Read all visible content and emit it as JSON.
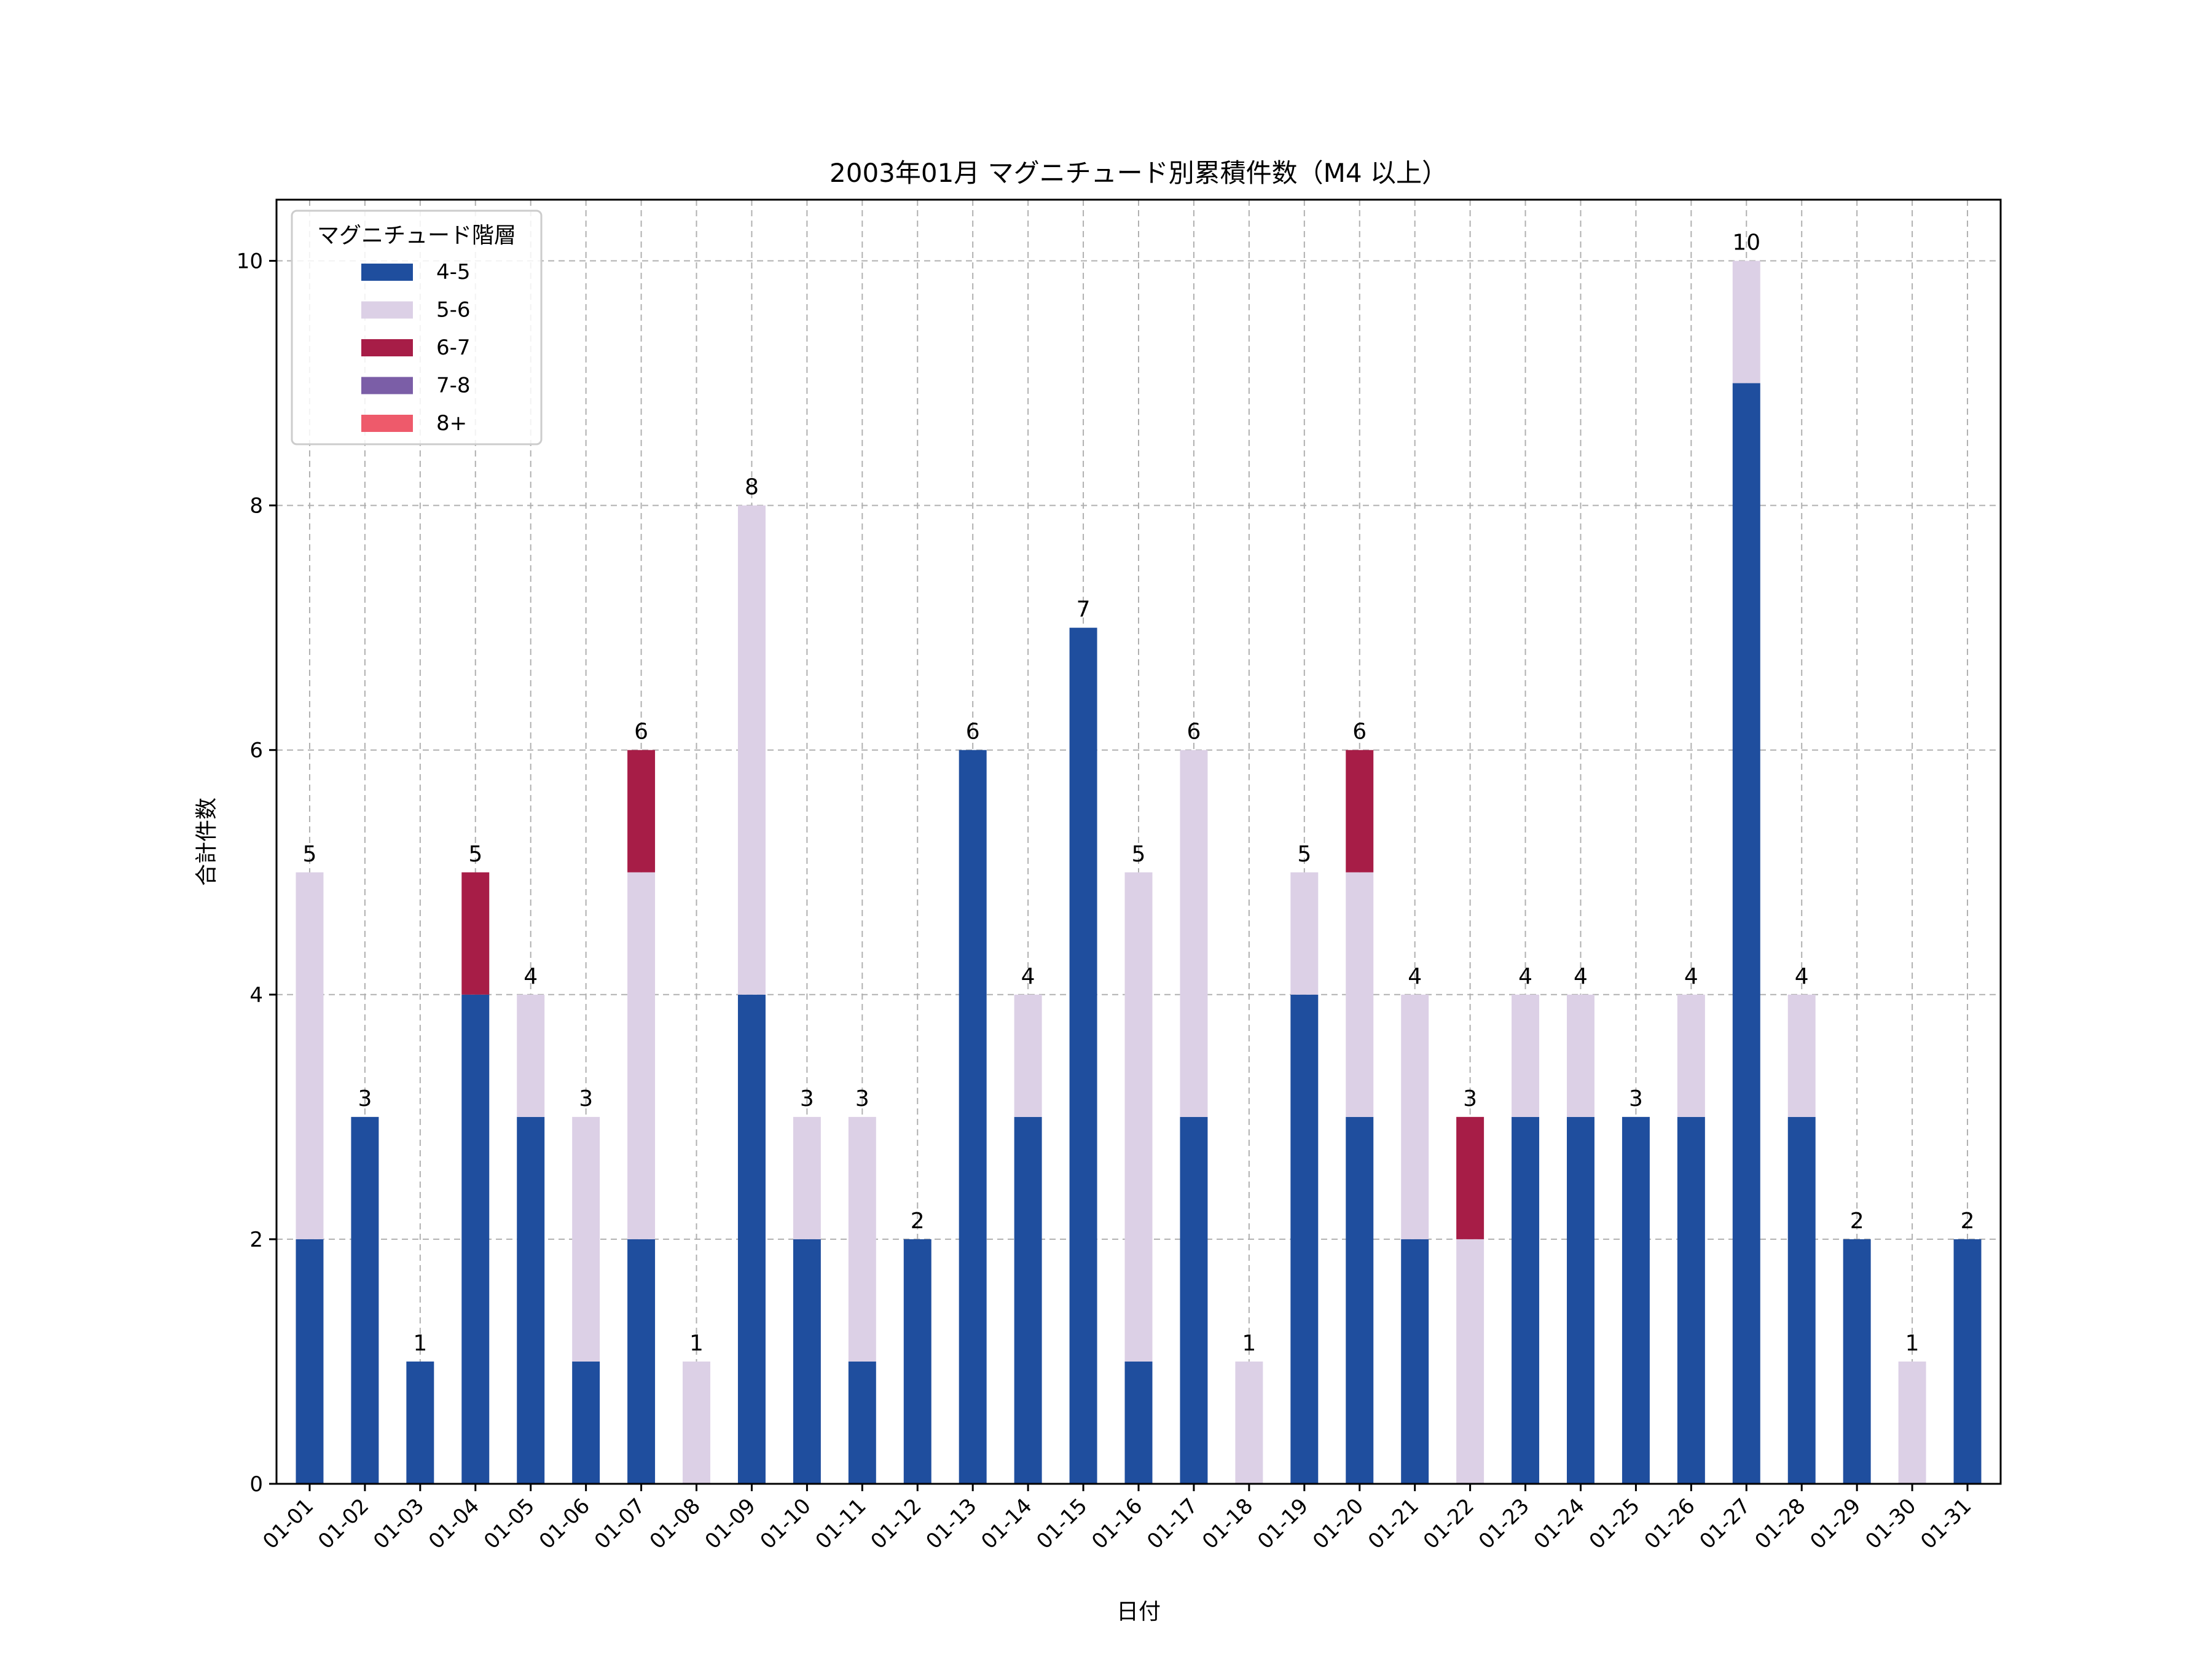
{
  "chart_data": {
    "type": "bar",
    "stacked": true,
    "title": "2003年01月 マグニチュード別累積件数（M4 以上）",
    "xlabel": "日付",
    "ylabel": "合計件数",
    "ylim": [
      0,
      10.5
    ],
    "yticks": [
      0,
      2,
      4,
      6,
      8,
      10
    ],
    "grid": true,
    "legend": {
      "title": "マグニチュード階層",
      "placement": "top-left"
    },
    "categories": [
      "01-01",
      "01-02",
      "01-03",
      "01-04",
      "01-05",
      "01-06",
      "01-07",
      "01-08",
      "01-09",
      "01-10",
      "01-11",
      "01-12",
      "01-13",
      "01-14",
      "01-15",
      "01-16",
      "01-17",
      "01-18",
      "01-19",
      "01-20",
      "01-21",
      "01-22",
      "01-23",
      "01-24",
      "01-25",
      "01-26",
      "01-27",
      "01-28",
      "01-29",
      "01-30",
      "01-31"
    ],
    "series": [
      {
        "name": "4-5",
        "color": "#1f4e9e",
        "values": [
          2,
          3,
          1,
          4,
          3,
          1,
          2,
          0,
          4,
          2,
          1,
          2,
          6,
          3,
          7,
          1,
          3,
          0,
          4,
          3,
          2,
          0,
          3,
          3,
          3,
          3,
          9,
          3,
          2,
          0,
          2
        ]
      },
      {
        "name": "5-6",
        "color": "#dcd0e6",
        "values": [
          3,
          0,
          0,
          0,
          1,
          2,
          3,
          1,
          4,
          1,
          2,
          0,
          0,
          1,
          0,
          4,
          3,
          1,
          1,
          2,
          2,
          2,
          1,
          1,
          0,
          1,
          1,
          1,
          0,
          1,
          0
        ]
      },
      {
        "name": "6-7",
        "color": "#a71d47",
        "values": [
          0,
          0,
          0,
          1,
          0,
          0,
          1,
          0,
          0,
          0,
          0,
          0,
          0,
          0,
          0,
          0,
          0,
          0,
          0,
          1,
          0,
          1,
          0,
          0,
          0,
          0,
          0,
          0,
          0,
          0,
          0
        ]
      },
      {
        "name": "7-8",
        "color": "#7b5ea7",
        "values": [
          0,
          0,
          0,
          0,
          0,
          0,
          0,
          0,
          0,
          0,
          0,
          0,
          0,
          0,
          0,
          0,
          0,
          0,
          0,
          0,
          0,
          0,
          0,
          0,
          0,
          0,
          0,
          0,
          0,
          0,
          0
        ]
      },
      {
        "name": "8+",
        "color": "#ee5a6b",
        "values": [
          0,
          0,
          0,
          0,
          0,
          0,
          0,
          0,
          0,
          0,
          0,
          0,
          0,
          0,
          0,
          0,
          0,
          0,
          0,
          0,
          0,
          0,
          0,
          0,
          0,
          0,
          0,
          0,
          0,
          0,
          0
        ]
      }
    ],
    "totals": [
      5,
      3,
      1,
      5,
      4,
      3,
      6,
      1,
      8,
      3,
      3,
      2,
      6,
      4,
      7,
      5,
      6,
      1,
      5,
      6,
      4,
      3,
      4,
      4,
      3,
      4,
      10,
      4,
      2,
      1,
      2
    ]
  }
}
